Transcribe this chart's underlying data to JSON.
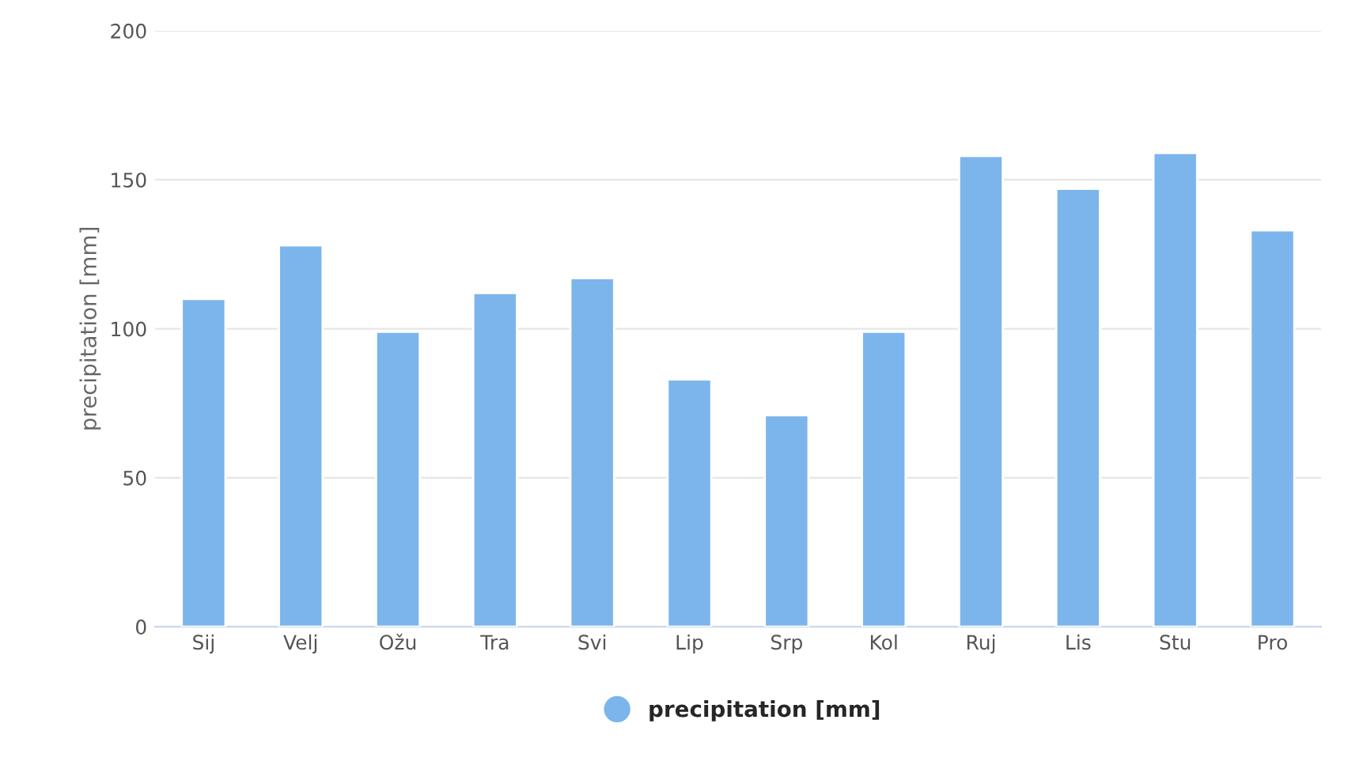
{
  "chart_data": {
    "type": "bar",
    "ylabel": "precipitation [mm]",
    "categories": [
      "Sij",
      "Velj",
      "Ožu",
      "Tra",
      "Svi",
      "Lip",
      "Srp",
      "Kol",
      "Ruj",
      "Lis",
      "Stu",
      "Pro"
    ],
    "series": [
      {
        "name": "precipitation [mm]",
        "color": "#7cb5ec",
        "values": [
          110,
          128,
          99,
          112,
          117,
          83,
          71,
          99,
          158,
          147,
          159,
          133
        ]
      }
    ],
    "ylim": [
      0,
      200
    ],
    "yticks": [
      0,
      50,
      100,
      150,
      200
    ],
    "grid": "y",
    "legend": "bottom"
  }
}
